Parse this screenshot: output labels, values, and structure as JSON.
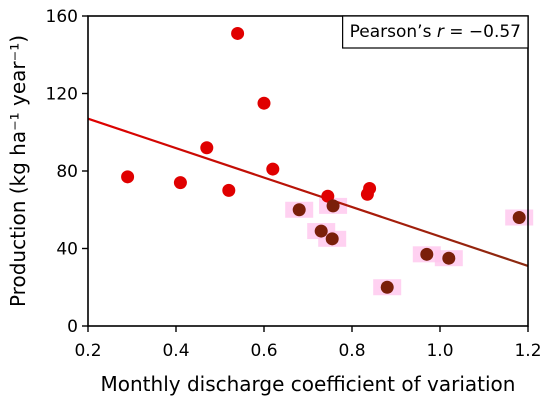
{
  "chart_data": {
    "type": "scatter",
    "xlabel": "Monthly discharge coefficient of variation",
    "ylabel": "Production (kg ha⁻¹ year⁻¹)",
    "xlim": [
      0.2,
      1.2
    ],
    "ylim": [
      0,
      160
    ],
    "xticks": [
      "0.2",
      "0.4",
      "0.6",
      "0.8",
      "1.0",
      "1.2"
    ],
    "yticks": [
      "0",
      "40",
      "80",
      "120",
      "160"
    ],
    "annotation": {
      "prefix": "Pearson’s ",
      "symbol": "r",
      "suffix": " = −0.57",
      "position": "top-right"
    },
    "grid": false,
    "colors": {
      "early": "#e00000",
      "late": "#7a1f0a",
      "line_start": "#e00000",
      "line_end": "#8a2a10",
      "highlight": "#ffc6ee"
    },
    "fit_line": {
      "x": [
        0.2,
        1.2
      ],
      "y": [
        107,
        31
      ]
    },
    "points": [
      {
        "x": 0.29,
        "y": 77,
        "color": "early",
        "highlight": false
      },
      {
        "x": 0.41,
        "y": 74,
        "color": "early",
        "highlight": false
      },
      {
        "x": 0.47,
        "y": 92,
        "color": "early",
        "highlight": false
      },
      {
        "x": 0.52,
        "y": 70,
        "color": "early",
        "highlight": false
      },
      {
        "x": 0.54,
        "y": 151,
        "color": "early",
        "highlight": false
      },
      {
        "x": 0.6,
        "y": 115,
        "color": "early",
        "highlight": false
      },
      {
        "x": 0.62,
        "y": 81,
        "color": "early",
        "highlight": false
      },
      {
        "x": 0.68,
        "y": 60,
        "color": "late",
        "highlight": true
      },
      {
        "x": 0.73,
        "y": 49,
        "color": "late",
        "highlight": true
      },
      {
        "x": 0.745,
        "y": 67,
        "color": "early",
        "highlight": false
      },
      {
        "x": 0.755,
        "y": 45,
        "color": "late",
        "highlight": true
      },
      {
        "x": 0.757,
        "y": 62,
        "color": "late",
        "highlight": true
      },
      {
        "x": 0.835,
        "y": 68,
        "color": "early",
        "highlight": false
      },
      {
        "x": 0.84,
        "y": 71,
        "color": "early",
        "highlight": false
      },
      {
        "x": 0.88,
        "y": 20,
        "color": "late",
        "highlight": true
      },
      {
        "x": 0.97,
        "y": 37,
        "color": "late",
        "highlight": true
      },
      {
        "x": 1.02,
        "y": 35,
        "color": "late",
        "highlight": true
      },
      {
        "x": 1.18,
        "y": 56,
        "color": "late",
        "highlight": true
      }
    ]
  }
}
